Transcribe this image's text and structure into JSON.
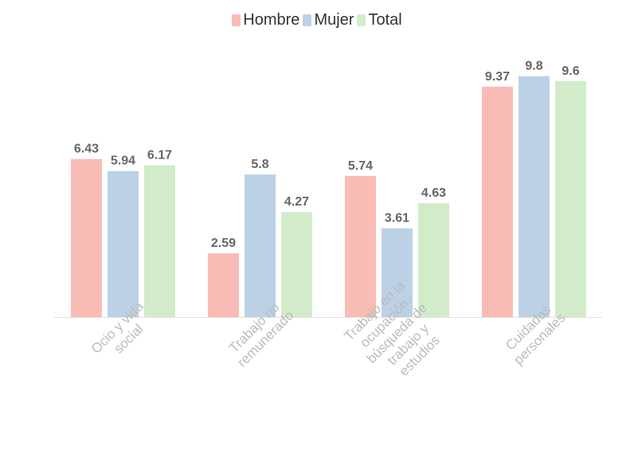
{
  "chart_data": {
    "type": "bar",
    "categories": [
      [
        "Ocio y vida",
        "social"
      ],
      [
        "Trabajo no",
        "remunerado"
      ],
      [
        "Trabajo en la",
        "ocupación.",
        "búsqueda de",
        "trabajo y",
        "estudios"
      ],
      [
        "Cuidados",
        "personales"
      ]
    ],
    "series": [
      {
        "name": "Hombre",
        "color": "#f9bcb5",
        "values": [
          6.43,
          2.59,
          5.74,
          9.37
        ]
      },
      {
        "name": "Mujer",
        "color": "#bcd1e6",
        "values": [
          5.94,
          5.8,
          3.61,
          9.8
        ]
      },
      {
        "name": "Total",
        "color": "#d2ecca",
        "values": [
          6.17,
          4.27,
          4.63,
          9.6
        ]
      }
    ],
    "ylim": [
      0,
      10.5
    ],
    "legend_position": "top-center",
    "grid": false
  }
}
